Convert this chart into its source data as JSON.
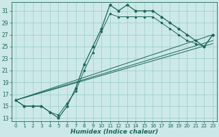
{
  "xlabel": "Humidex (Indice chaleur)",
  "background_color": "#cce8e8",
  "grid_color": "#99cccc",
  "line_color": "#1a6655",
  "xlim": [
    -0.5,
    23.5
  ],
  "ylim": [
    12.5,
    32.5
  ],
  "yticks": [
    13,
    15,
    17,
    19,
    21,
    23,
    25,
    27,
    29,
    31
  ],
  "xticks": [
    0,
    1,
    2,
    3,
    4,
    5,
    6,
    7,
    8,
    9,
    10,
    11,
    12,
    13,
    14,
    15,
    16,
    17,
    18,
    19,
    20,
    21,
    22,
    23
  ],
  "line1_x": [
    0,
    1,
    2,
    3,
    4,
    5,
    6,
    7,
    8,
    9,
    10,
    11,
    12,
    13,
    14,
    15,
    16,
    17,
    18,
    19,
    20,
    21,
    22,
    23
  ],
  "line1_y": [
    16,
    15,
    15,
    15,
    14,
    13,
    15,
    18,
    22,
    25,
    28,
    32,
    31,
    32,
    31,
    31,
    31,
    30,
    29,
    28,
    27,
    26,
    25,
    27
  ],
  "line2_x": [
    0,
    1,
    2,
    3,
    4,
    5,
    6,
    7,
    8,
    9,
    10,
    11,
    12,
    13,
    14,
    15,
    16,
    17,
    18,
    19,
    20,
    21,
    22,
    23
  ],
  "line2_y": [
    16,
    15,
    15,
    15,
    14,
    13.5,
    15.5,
    17.5,
    21,
    24,
    27.5,
    30.5,
    30,
    30,
    30,
    30,
    30,
    29,
    28,
    27,
    26,
    25.5,
    25,
    27
  ],
  "straight_lines": [
    {
      "x": [
        0,
        23
      ],
      "y": [
        16,
        27
      ]
    },
    {
      "x": [
        0,
        23
      ],
      "y": [
        16,
        26
      ]
    },
    {
      "x": [
        0,
        23
      ],
      "y": [
        16,
        25.5
      ]
    }
  ]
}
